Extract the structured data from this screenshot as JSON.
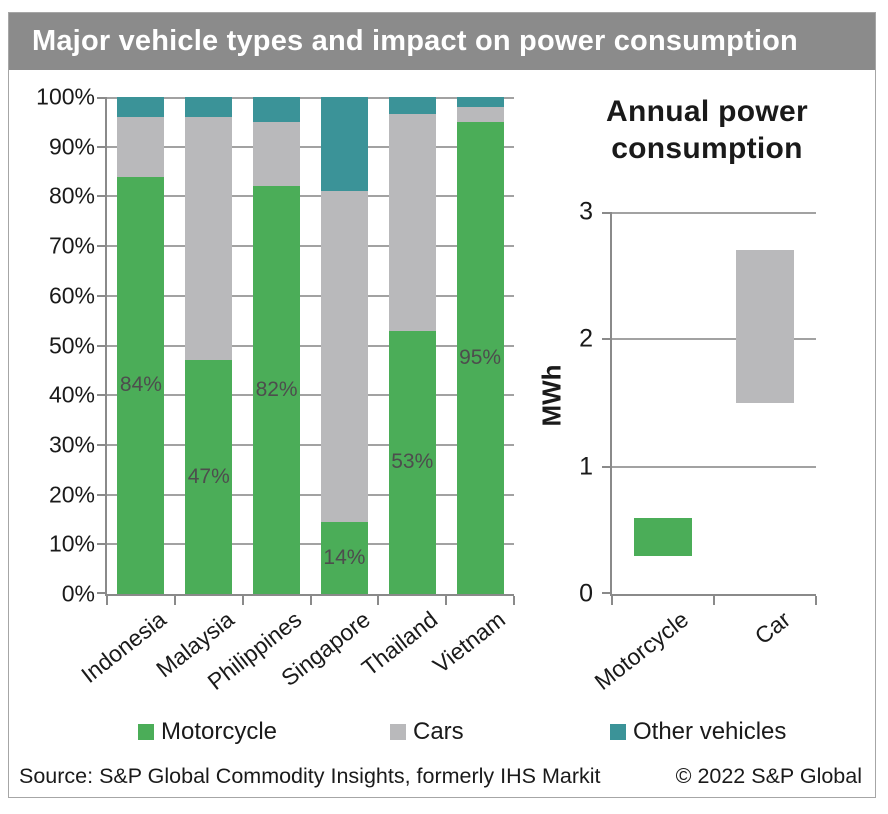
{
  "banner": {
    "title": "Major vehicle types and impact on power consumption"
  },
  "colors": {
    "motorcycle": "#4BAD58",
    "cars": "#B9B9BB",
    "other_vehicles": "#3B9398",
    "banner_bg": "#8B8B8B",
    "banner_text": "#FFFFFF",
    "grid": "#A2A2A2",
    "axis": "#8A8A8A",
    "bar_label_text": "#4D4D4D"
  },
  "chart_data": [
    {
      "type": "bar",
      "subtype": "stacked-100-percent",
      "title": "",
      "categories": [
        "Indonesia",
        "Malaysia",
        "Philippines",
        "Singapore",
        "Thailand",
        "Vietnam"
      ],
      "series": [
        {
          "name": "Motorcycle",
          "color_key": "motorcycle",
          "values": [
            84,
            47,
            82,
            14.5,
            53,
            95
          ]
        },
        {
          "name": "Cars",
          "color_key": "cars",
          "values": [
            12,
            49,
            13,
            66.5,
            43.5,
            3
          ]
        },
        {
          "name": "Other vehicles",
          "color_key": "other_vehicles",
          "values": [
            4,
            4,
            5,
            19,
            3.5,
            2
          ]
        }
      ],
      "bar_labels": [
        "84%",
        "47%",
        "82%",
        "14%",
        "53%",
        "95%"
      ],
      "y_ticks": [
        "100%",
        "90%",
        "80%",
        "70%",
        "60%",
        "50%",
        "40%",
        "30%",
        "20%",
        "10%",
        "0%"
      ],
      "ylim": [
        0,
        100
      ],
      "grid": true,
      "legend_position": "bottom"
    },
    {
      "type": "bar",
      "subtype": "floating-range",
      "title": "Annual power consumption",
      "ylabel": "MWh",
      "categories": [
        "Motorcycle",
        "Car"
      ],
      "bars": [
        {
          "name": "Motorcycle",
          "color_key": "motorcycle",
          "from": 0.3,
          "to": 0.6
        },
        {
          "name": "Car",
          "color_key": "cars",
          "from": 1.5,
          "to": 2.7
        }
      ],
      "y_ticks": [
        "3",
        "2",
        "1",
        "0"
      ],
      "ylim": [
        0,
        3
      ],
      "grid": true
    }
  ],
  "legend": [
    {
      "label": "Motorcycle",
      "color_key": "motorcycle"
    },
    {
      "label": "Cars",
      "color_key": "cars"
    },
    {
      "label": "Other vehicles",
      "color_key": "other_vehicles"
    }
  ],
  "footer": {
    "source": "Source: S&P Global Commodity Insights, formerly IHS Markit",
    "copyright": "© 2022 S&P Global"
  }
}
